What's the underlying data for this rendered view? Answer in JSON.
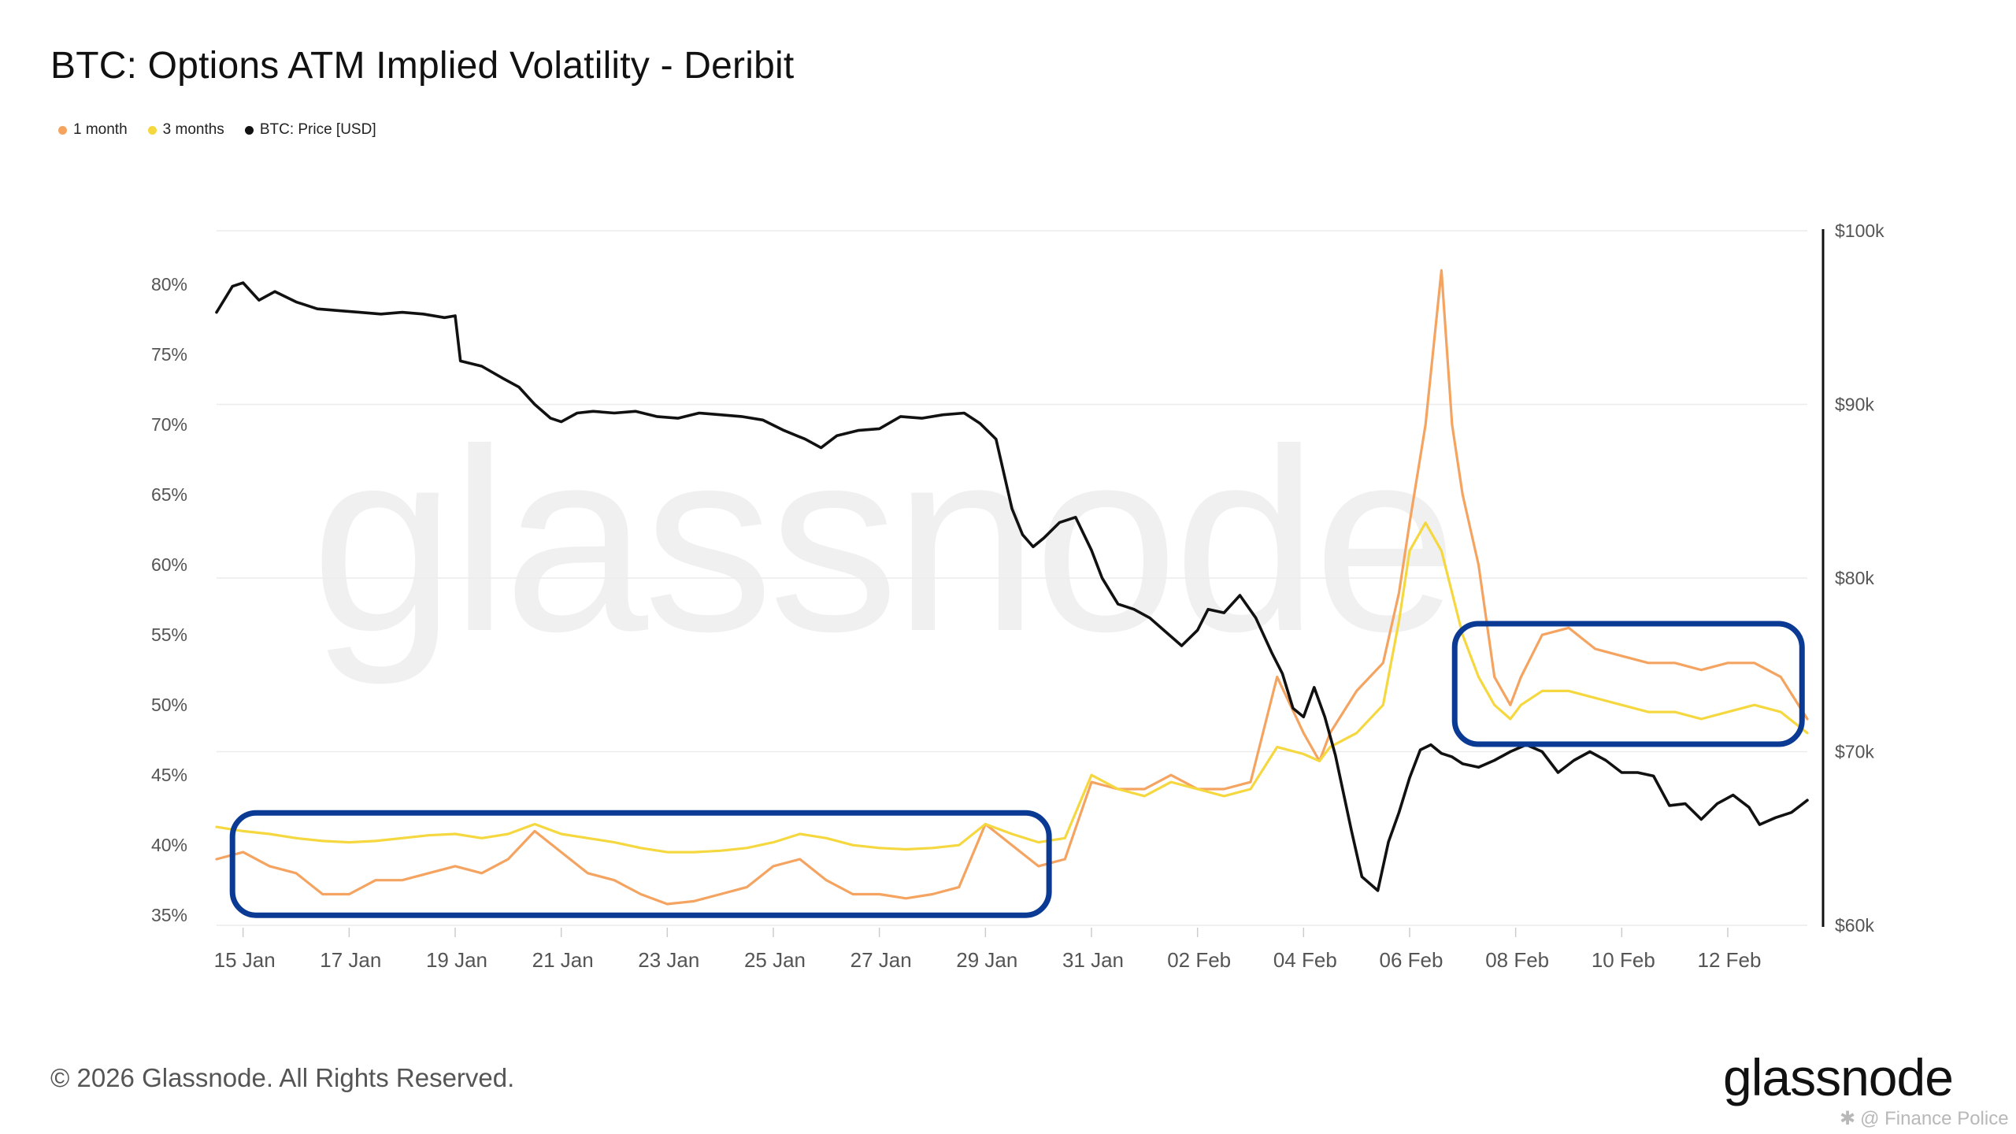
{
  "title": "BTC: Options ATM Implied Volatility - Deribit",
  "legend": [
    {
      "label": "1 month",
      "color": "#F4A460"
    },
    {
      "label": "3 months",
      "color": "#F5D840"
    },
    {
      "label": "BTC: Price [USD]",
      "color": "#111111"
    }
  ],
  "watermark": "glassnode",
  "footer": {
    "copyright": "© 2026 Glassnode. All Rights Reserved.",
    "logo": "glassnode",
    "credit": "@ Finance Police"
  },
  "chart_data": {
    "type": "line",
    "x_tick_labels": [
      "15 Jan",
      "17 Jan",
      "19 Jan",
      "21 Jan",
      "23 Jan",
      "25 Jan",
      "27 Jan",
      "29 Jan",
      "31 Jan",
      "02 Feb",
      "04 Feb",
      "06 Feb",
      "08 Feb",
      "10 Feb",
      "12 Feb"
    ],
    "x_range_days": [
      14.5,
      44.5
    ],
    "y_left": {
      "label": "Implied Volatility",
      "ticks": [
        "35%",
        "40%",
        "45%",
        "50%",
        "55%",
        "60%",
        "65%",
        "70%",
        "75%",
        "80%"
      ],
      "range": [
        34,
        84
      ]
    },
    "y_right": {
      "label": "BTC: Price [USD]",
      "ticks": [
        "$60k",
        "$70k",
        "$80k",
        "$90k",
        "$100k"
      ],
      "range": [
        60000,
        100000
      ]
    },
    "highlight_color": "#0A3A94",
    "series": [
      {
        "name": "1 month",
        "axis": "left",
        "color": "#F4A460",
        "x": [
          14.5,
          15.0,
          15.5,
          16.0,
          16.5,
          17.0,
          17.5,
          18.0,
          18.5,
          19.0,
          19.5,
          20.0,
          20.5,
          21.0,
          21.5,
          22.0,
          22.5,
          23.0,
          23.5,
          24.0,
          24.5,
          25.0,
          25.5,
          26.0,
          26.5,
          27.0,
          27.5,
          28.0,
          28.5,
          29.0,
          29.5,
          30.0,
          30.5,
          31.0,
          31.5,
          32.0,
          32.5,
          33.0,
          33.5,
          34.0,
          34.5,
          35.0,
          35.3,
          35.5,
          36.0,
          36.5,
          36.8,
          37.0,
          37.3,
          37.6,
          37.8,
          38.0,
          38.3,
          38.6,
          38.9,
          39.1,
          39.5,
          40.0,
          40.5,
          41.0,
          41.5,
          42.0,
          42.5,
          43.0,
          43.5,
          44.0,
          44.5
        ],
        "values": [
          39,
          39.5,
          38.5,
          38,
          36.5,
          36.5,
          37.5,
          37.5,
          38,
          38.5,
          38,
          39,
          41,
          39.5,
          38,
          37.5,
          36.5,
          35.8,
          36,
          36.5,
          37,
          38.5,
          39,
          37.5,
          36.5,
          36.5,
          36.2,
          36.5,
          37,
          41.5,
          40,
          38.5,
          39,
          44.5,
          44,
          44,
          45,
          44,
          44,
          44.5,
          52,
          48,
          46,
          48,
          51,
          53,
          58,
          63,
          70,
          81,
          70,
          65,
          60,
          52,
          50,
          52,
          55,
          55.5,
          54,
          53.5,
          53,
          53,
          52.5,
          53,
          53,
          52,
          49
        ]
      },
      {
        "name": "3 months",
        "axis": "left",
        "color": "#F5D840",
        "x": [
          14.5,
          15.0,
          15.5,
          16.0,
          16.5,
          17.0,
          17.5,
          18.0,
          18.5,
          19.0,
          19.5,
          20.0,
          20.5,
          21.0,
          21.5,
          22.0,
          22.5,
          23.0,
          23.5,
          24.0,
          24.5,
          25.0,
          25.5,
          26.0,
          26.5,
          27.0,
          27.5,
          28.0,
          28.5,
          29.0,
          29.5,
          30.0,
          30.5,
          31.0,
          31.5,
          32.0,
          32.5,
          33.0,
          33.5,
          34.0,
          34.5,
          35.0,
          35.3,
          35.5,
          36.0,
          36.5,
          36.8,
          37.0,
          37.3,
          37.6,
          37.8,
          38.0,
          38.3,
          38.6,
          38.9,
          39.1,
          39.5,
          40.0,
          40.5,
          41.0,
          41.5,
          42.0,
          42.5,
          43.0,
          43.5,
          44.0,
          44.5
        ],
        "values": [
          41.3,
          41,
          40.8,
          40.5,
          40.3,
          40.2,
          40.3,
          40.5,
          40.7,
          40.8,
          40.5,
          40.8,
          41.5,
          40.8,
          40.5,
          40.2,
          39.8,
          39.5,
          39.5,
          39.6,
          39.8,
          40.2,
          40.8,
          40.5,
          40,
          39.8,
          39.7,
          39.8,
          40,
          41.5,
          40.8,
          40.2,
          40.5,
          45,
          44,
          43.5,
          44.5,
          44,
          43.5,
          44,
          47,
          46.5,
          46,
          47,
          48,
          50,
          56,
          61,
          63,
          61,
          58,
          55,
          52,
          50,
          49,
          50,
          51,
          51,
          50.5,
          50,
          49.5,
          49.5,
          49,
          49.5,
          50,
          49.5,
          48
        ]
      },
      {
        "name": "BTC: Price [USD]",
        "axis": "right",
        "color": "#111111",
        "x": [
          14.5,
          14.8,
          15.0,
          15.3,
          15.6,
          16.0,
          16.4,
          16.8,
          17.2,
          17.6,
          18.0,
          18.4,
          18.8,
          19.0,
          19.1,
          19.5,
          19.9,
          20.2,
          20.5,
          20.8,
          21.0,
          21.3,
          21.6,
          22.0,
          22.4,
          22.8,
          23.2,
          23.6,
          24.0,
          24.4,
          24.8,
          25.2,
          25.6,
          25.9,
          26.2,
          26.6,
          27.0,
          27.4,
          27.8,
          28.2,
          28.6,
          28.9,
          29.2,
          29.5,
          29.7,
          29.9,
          30.1,
          30.4,
          30.7,
          31.0,
          31.2,
          31.5,
          31.8,
          32.1,
          32.4,
          32.7,
          33.0,
          33.2,
          33.5,
          33.8,
          34.1,
          34.4,
          34.6,
          34.8,
          35.0,
          35.2,
          35.4,
          35.6,
          35.9,
          36.1,
          36.4,
          36.6,
          36.8,
          37.0,
          37.2,
          37.4,
          37.6,
          37.8,
          38.0,
          38.3,
          38.6,
          38.9,
          39.2,
          39.5,
          39.8,
          40.1,
          40.4,
          40.7,
          41.0,
          41.3,
          41.6,
          41.9,
          42.2,
          42.5,
          42.8,
          43.1,
          43.4,
          43.6,
          43.9,
          44.2,
          44.5
        ],
        "values": [
          95300,
          96800,
          97000,
          96000,
          96500,
          95900,
          95500,
          95400,
          95300,
          95200,
          95300,
          95200,
          95000,
          95100,
          92500,
          92200,
          91500,
          91000,
          90000,
          89200,
          89000,
          89500,
          89600,
          89500,
          89600,
          89300,
          89200,
          89500,
          89400,
          89300,
          89100,
          88500,
          88000,
          87500,
          88200,
          88500,
          88600,
          89300,
          89200,
          89400,
          89500,
          88900,
          88000,
          84000,
          82500,
          81800,
          82300,
          83200,
          83500,
          81600,
          80000,
          78500,
          78200,
          77700,
          76900,
          76100,
          77000,
          78200,
          78000,
          79000,
          77700,
          75700,
          74500,
          72500,
          72000,
          73700,
          72000,
          69800,
          65500,
          62800,
          62000,
          64800,
          66500,
          68500,
          70100,
          70400,
          69900,
          69700,
          69300,
          69100,
          69500,
          70000,
          70400,
          70000,
          68800,
          69500,
          70000,
          69500,
          68800,
          68800,
          68600,
          66900,
          67000,
          66100,
          67000,
          67500,
          66800,
          65800,
          66200,
          66500,
          67200
        ]
      }
    ],
    "highlights": [
      {
        "x_range": [
          14.8,
          30.2
        ],
        "y_range": [
          35.0,
          42.3
        ],
        "axis": "left"
      },
      {
        "x_range": [
          37.85,
          44.4
        ],
        "y_range": [
          47.2,
          55.8
        ],
        "axis": "left"
      }
    ]
  }
}
